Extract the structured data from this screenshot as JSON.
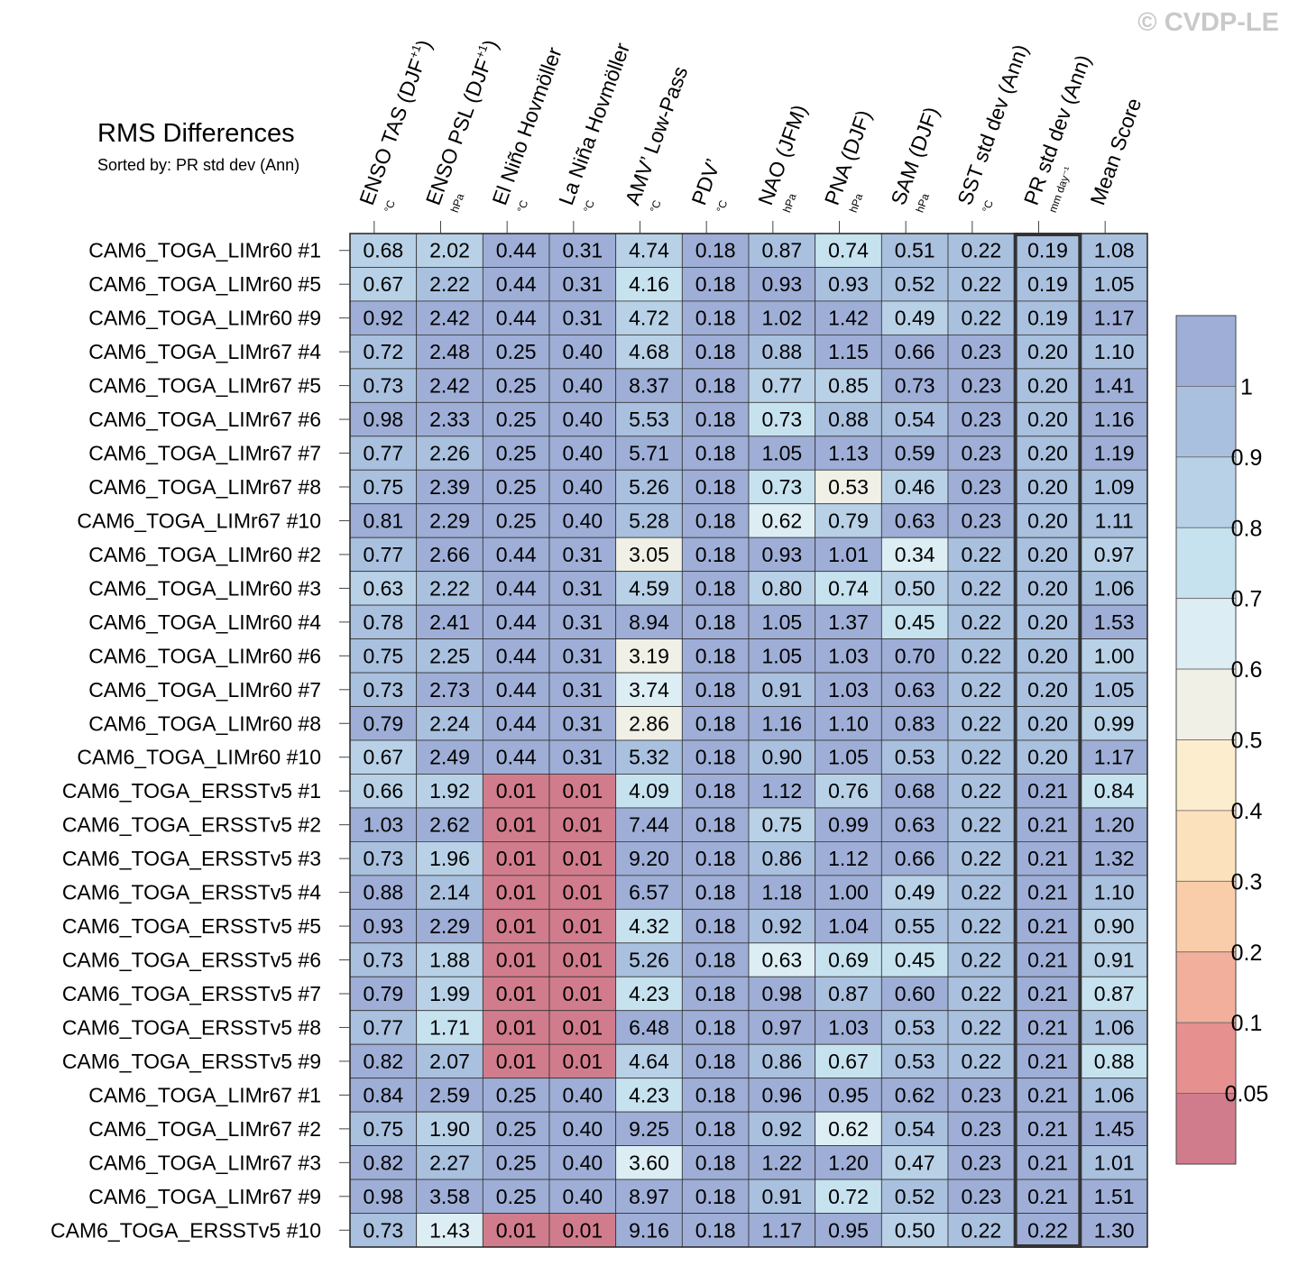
{
  "watermark": "© CVDP-LE",
  "chart_data": {
    "type": "heatmap",
    "title": "RMS Differences",
    "subtitle": "Sorted by: PR std dev (Ann)",
    "columns": [
      {
        "label": "ENSO TAS (DJF",
        "sup": "+1",
        "tail": ")",
        "unit": "°C"
      },
      {
        "label": "ENSO PSL (DJF",
        "sup": "+1",
        "tail": ")",
        "unit": "hPa"
      },
      {
        "label": "El Niño Hovmöller",
        "unit": "°C"
      },
      {
        "label": "La Niña Hovmöller",
        "unit": "°C"
      },
      {
        "label": "AMV’ Low-Pass",
        "unit": "°C"
      },
      {
        "label": "PDV’",
        "unit": "°C"
      },
      {
        "label": "NAO (JFM)",
        "unit": "hPa"
      },
      {
        "label": "PNA (DJF)",
        "unit": "hPa"
      },
      {
        "label": "SAM (DJF)",
        "unit": "hPa"
      },
      {
        "label": "SST std dev (Ann)",
        "unit": "°C"
      },
      {
        "label": "PR std dev (Ann)",
        "unit": "mm day⁻¹"
      },
      {
        "label": "Mean Score",
        "unit": ""
      }
    ],
    "highlight_column": 10,
    "rows": [
      {
        "name": "CAM6_TOGA_LIMr60 #1",
        "values": [
          "0.68",
          "2.02",
          "0.44",
          "0.31",
          "4.74",
          "0.18",
          "0.87",
          "0.74",
          "0.51",
          "0.22",
          "0.19",
          "1.08"
        ]
      },
      {
        "name": "CAM6_TOGA_LIMr60 #5",
        "values": [
          "0.67",
          "2.22",
          "0.44",
          "0.31",
          "4.16",
          "0.18",
          "0.93",
          "0.93",
          "0.52",
          "0.22",
          "0.19",
          "1.05"
        ]
      },
      {
        "name": "CAM6_TOGA_LIMr60 #9",
        "values": [
          "0.92",
          "2.42",
          "0.44",
          "0.31",
          "4.72",
          "0.18",
          "1.02",
          "1.42",
          "0.49",
          "0.22",
          "0.19",
          "1.17"
        ]
      },
      {
        "name": "CAM6_TOGA_LIMr67 #4",
        "values": [
          "0.72",
          "2.48",
          "0.25",
          "0.40",
          "4.68",
          "0.18",
          "0.88",
          "1.15",
          "0.66",
          "0.23",
          "0.20",
          "1.10"
        ]
      },
      {
        "name": "CAM6_TOGA_LIMr67 #5",
        "values": [
          "0.73",
          "2.42",
          "0.25",
          "0.40",
          "8.37",
          "0.18",
          "0.77",
          "0.85",
          "0.73",
          "0.23",
          "0.20",
          "1.41"
        ]
      },
      {
        "name": "CAM6_TOGA_LIMr67 #6",
        "values": [
          "0.98",
          "2.33",
          "0.25",
          "0.40",
          "5.53",
          "0.18",
          "0.73",
          "0.88",
          "0.54",
          "0.23",
          "0.20",
          "1.16"
        ]
      },
      {
        "name": "CAM6_TOGA_LIMr67 #7",
        "values": [
          "0.77",
          "2.26",
          "0.25",
          "0.40",
          "5.71",
          "0.18",
          "1.05",
          "1.13",
          "0.59",
          "0.23",
          "0.20",
          "1.19"
        ]
      },
      {
        "name": "CAM6_TOGA_LIMr67 #8",
        "values": [
          "0.75",
          "2.39",
          "0.25",
          "0.40",
          "5.26",
          "0.18",
          "0.73",
          "0.53",
          "0.46",
          "0.23",
          "0.20",
          "1.09"
        ]
      },
      {
        "name": "CAM6_TOGA_LIMr67 #10",
        "values": [
          "0.81",
          "2.29",
          "0.25",
          "0.40",
          "5.28",
          "0.18",
          "0.62",
          "0.79",
          "0.63",
          "0.23",
          "0.20",
          "1.11"
        ]
      },
      {
        "name": "CAM6_TOGA_LIMr60 #2",
        "values": [
          "0.77",
          "2.66",
          "0.44",
          "0.31",
          "3.05",
          "0.18",
          "0.93",
          "1.01",
          "0.34",
          "0.22",
          "0.20",
          "0.97"
        ]
      },
      {
        "name": "CAM6_TOGA_LIMr60 #3",
        "values": [
          "0.63",
          "2.22",
          "0.44",
          "0.31",
          "4.59",
          "0.18",
          "0.80",
          "0.74",
          "0.50",
          "0.22",
          "0.20",
          "1.06"
        ]
      },
      {
        "name": "CAM6_TOGA_LIMr60 #4",
        "values": [
          "0.78",
          "2.41",
          "0.44",
          "0.31",
          "8.94",
          "0.18",
          "1.05",
          "1.37",
          "0.45",
          "0.22",
          "0.20",
          "1.53"
        ]
      },
      {
        "name": "CAM6_TOGA_LIMr60 #6",
        "values": [
          "0.75",
          "2.25",
          "0.44",
          "0.31",
          "3.19",
          "0.18",
          "1.05",
          "1.03",
          "0.70",
          "0.22",
          "0.20",
          "1.00"
        ]
      },
      {
        "name": "CAM6_TOGA_LIMr60 #7",
        "values": [
          "0.73",
          "2.73",
          "0.44",
          "0.31",
          "3.74",
          "0.18",
          "0.91",
          "1.03",
          "0.63",
          "0.22",
          "0.20",
          "1.05"
        ]
      },
      {
        "name": "CAM6_TOGA_LIMr60 #8",
        "values": [
          "0.79",
          "2.24",
          "0.44",
          "0.31",
          "2.86",
          "0.18",
          "1.16",
          "1.10",
          "0.83",
          "0.22",
          "0.20",
          "0.99"
        ]
      },
      {
        "name": "CAM6_TOGA_LIMr60 #10",
        "values": [
          "0.67",
          "2.49",
          "0.44",
          "0.31",
          "5.32",
          "0.18",
          "0.90",
          "1.05",
          "0.53",
          "0.22",
          "0.20",
          "1.17"
        ]
      },
      {
        "name": "CAM6_TOGA_ERSSTv5 #1",
        "values": [
          "0.66",
          "1.92",
          "0.01",
          "0.01",
          "4.09",
          "0.18",
          "1.12",
          "0.76",
          "0.68",
          "0.22",
          "0.21",
          "0.84"
        ]
      },
      {
        "name": "CAM6_TOGA_ERSSTv5 #2",
        "values": [
          "1.03",
          "2.62",
          "0.01",
          "0.01",
          "7.44",
          "0.18",
          "0.75",
          "0.99",
          "0.63",
          "0.22",
          "0.21",
          "1.20"
        ]
      },
      {
        "name": "CAM6_TOGA_ERSSTv5 #3",
        "values": [
          "0.73",
          "1.96",
          "0.01",
          "0.01",
          "9.20",
          "0.18",
          "0.86",
          "1.12",
          "0.66",
          "0.22",
          "0.21",
          "1.32"
        ]
      },
      {
        "name": "CAM6_TOGA_ERSSTv5 #4",
        "values": [
          "0.88",
          "2.14",
          "0.01",
          "0.01",
          "6.57",
          "0.18",
          "1.18",
          "1.00",
          "0.49",
          "0.22",
          "0.21",
          "1.10"
        ]
      },
      {
        "name": "CAM6_TOGA_ERSSTv5 #5",
        "values": [
          "0.93",
          "2.29",
          "0.01",
          "0.01",
          "4.32",
          "0.18",
          "0.92",
          "1.04",
          "0.55",
          "0.22",
          "0.21",
          "0.90"
        ]
      },
      {
        "name": "CAM6_TOGA_ERSSTv5 #6",
        "values": [
          "0.73",
          "1.88",
          "0.01",
          "0.01",
          "5.26",
          "0.18",
          "0.63",
          "0.69",
          "0.45",
          "0.22",
          "0.21",
          "0.91"
        ]
      },
      {
        "name": "CAM6_TOGA_ERSSTv5 #7",
        "values": [
          "0.79",
          "1.99",
          "0.01",
          "0.01",
          "4.23",
          "0.18",
          "0.98",
          "0.87",
          "0.60",
          "0.22",
          "0.21",
          "0.87"
        ]
      },
      {
        "name": "CAM6_TOGA_ERSSTv5 #8",
        "values": [
          "0.77",
          "1.71",
          "0.01",
          "0.01",
          "6.48",
          "0.18",
          "0.97",
          "1.03",
          "0.53",
          "0.22",
          "0.21",
          "1.06"
        ]
      },
      {
        "name": "CAM6_TOGA_ERSSTv5 #9",
        "values": [
          "0.82",
          "2.07",
          "0.01",
          "0.01",
          "4.64",
          "0.18",
          "0.86",
          "0.67",
          "0.53",
          "0.22",
          "0.21",
          "0.88"
        ]
      },
      {
        "name": "CAM6_TOGA_LIMr67 #1",
        "values": [
          "0.84",
          "2.59",
          "0.25",
          "0.40",
          "4.23",
          "0.18",
          "0.96",
          "0.95",
          "0.62",
          "0.23",
          "0.21",
          "1.06"
        ]
      },
      {
        "name": "CAM6_TOGA_LIMr67 #2",
        "values": [
          "0.75",
          "1.90",
          "0.25",
          "0.40",
          "9.25",
          "0.18",
          "0.92",
          "0.62",
          "0.54",
          "0.23",
          "0.21",
          "1.45"
        ]
      },
      {
        "name": "CAM6_TOGA_LIMr67 #3",
        "values": [
          "0.82",
          "2.27",
          "0.25",
          "0.40",
          "3.60",
          "0.18",
          "1.22",
          "1.20",
          "0.47",
          "0.23",
          "0.21",
          "1.01"
        ]
      },
      {
        "name": "CAM6_TOGA_LIMr67 #9",
        "values": [
          "0.98",
          "3.58",
          "0.25",
          "0.40",
          "8.97",
          "0.18",
          "0.91",
          "0.72",
          "0.52",
          "0.23",
          "0.21",
          "1.51"
        ]
      },
      {
        "name": "CAM6_TOGA_ERSSTv5 #10",
        "values": [
          "0.73",
          "1.43",
          "0.01",
          "0.01",
          "9.16",
          "0.18",
          "1.17",
          "0.95",
          "0.50",
          "0.22",
          "0.22",
          "1.30"
        ]
      }
    ],
    "colorbar": {
      "labels": [
        "1",
        "0.9",
        "0.8",
        "0.7",
        "0.6",
        "0.5",
        "0.4",
        "0.3",
        "0.2",
        "0.1",
        "0.05"
      ],
      "thresholds": [
        0.05,
        0.1,
        0.2,
        0.3,
        0.4,
        0.5,
        0.6,
        0.7,
        0.8,
        0.9,
        1.0
      ],
      "colors": [
        "#d17c8c",
        "#e69090",
        "#f2b09c",
        "#f9cda9",
        "#fbe1bc",
        "#fcedcf",
        "#f1f0e7",
        "#dcedf4",
        "#c7e2ef",
        "#b8d1e6",
        "#a9c0de",
        "#9eaed6"
      ]
    }
  }
}
